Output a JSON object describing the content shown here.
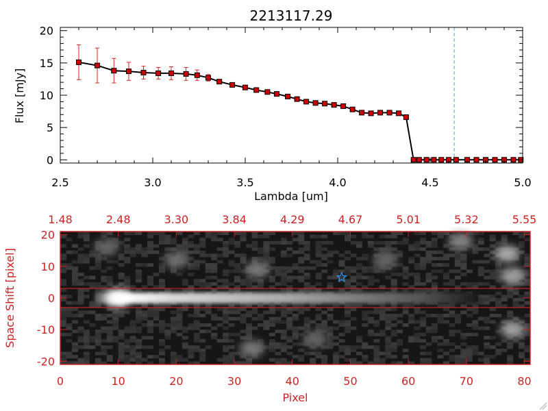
{
  "chart_data": [
    {
      "type": "line",
      "title": "2213117.29",
      "xlabel": "Lambda [um]",
      "ylabel": "Flux [mJy]",
      "xlim": [
        2.5,
        5.0
      ],
      "ylim": [
        -0.5,
        20.5
      ],
      "xticks": [
        2.5,
        3.0,
        3.5,
        4.0,
        4.5,
        5.0
      ],
      "xtick_labels": [
        "2.5",
        "3.0",
        "3.5",
        "4.0",
        "4.5",
        "5.0"
      ],
      "yticks": [
        0,
        5,
        10,
        15,
        20
      ],
      "ytick_labels": [
        "0",
        "5",
        "10",
        "15",
        "20"
      ],
      "line_color": "#000000",
      "marker_color": "#cc0000",
      "errorbar_color": "#dd2222",
      "vline": {
        "x": 4.63,
        "color": "#4aa8e0",
        "style": "dashed"
      },
      "series": [
        {
          "x": [
            2.6,
            2.7,
            2.79,
            2.87,
            2.95,
            3.03,
            3.1,
            3.18,
            3.24,
            3.3,
            3.36,
            3.43,
            3.5,
            3.56,
            3.62,
            3.67,
            3.73,
            3.78,
            3.83,
            3.88,
            3.93,
            3.98,
            4.03,
            4.08,
            4.13,
            4.18,
            4.23,
            4.28,
            4.33,
            4.37,
            4.41,
            4.44,
            4.48,
            4.52,
            4.56,
            4.6,
            4.64,
            4.7,
            4.75,
            4.8,
            4.85,
            4.9,
            4.95,
            4.99
          ],
          "y": [
            15.1,
            14.6,
            13.8,
            13.7,
            13.5,
            13.4,
            13.4,
            13.3,
            13.1,
            12.7,
            12.1,
            11.6,
            11.2,
            10.8,
            10.5,
            10.2,
            9.8,
            9.4,
            9.0,
            8.8,
            8.7,
            8.5,
            8.3,
            7.8,
            7.3,
            7.2,
            7.3,
            7.3,
            7.2,
            6.6,
            0.0,
            0.0,
            0.0,
            0.0,
            0.0,
            0.0,
            0.0,
            0.0,
            0.0,
            0.0,
            0.0,
            0.0,
            0.0,
            0.0
          ],
          "yerr": [
            2.7,
            2.7,
            1.9,
            1.4,
            1.0,
            0.9,
            1.0,
            1.0,
            0.8,
            0.5,
            0.3,
            0.2,
            0.2,
            0.2,
            0.2,
            0.2,
            0.2,
            0.2,
            0.2,
            0.2,
            0.2,
            0.2,
            0.2,
            0.2,
            0.2,
            0.2,
            0.2,
            0.2,
            0.2,
            0.2,
            0.1,
            0.1,
            0.1,
            0.1,
            0.1,
            0.1,
            0.1,
            0.1,
            0.1,
            0.1,
            0.1,
            0.1,
            0.1,
            0.1
          ]
        }
      ]
    },
    {
      "type": "heatmap",
      "xlabel": "Pixel",
      "ylabel": "Space Shift [pixel]",
      "xlim": [
        0,
        81
      ],
      "ylim": [
        -21,
        21
      ],
      "xticks": [
        0,
        10,
        20,
        30,
        40,
        50,
        60,
        70,
        80
      ],
      "xtick_labels": [
        "0",
        "10",
        "20",
        "30",
        "40",
        "50",
        "60",
        "70",
        "80"
      ],
      "yticks": [
        -20,
        -10,
        0,
        10,
        20
      ],
      "ytick_labels": [
        "-20",
        "-10",
        "0",
        "10",
        "20"
      ],
      "top_axis_labels": [
        "1.48",
        "2.48",
        "3.30",
        "3.84",
        "4.29",
        "4.67",
        "5.01",
        "5.32",
        "5.55"
      ],
      "axis_color": "#cc2222",
      "colormap": "grayscale",
      "extraction_window": [
        -3,
        3
      ],
      "trace": {
        "peak_x": 10,
        "y": 0,
        "end_x": 72
      },
      "blobs": [
        {
          "x": 77,
          "y": 14,
          "level": 0.55
        },
        {
          "x": 78,
          "y": 7,
          "level": 0.5
        },
        {
          "x": 78,
          "y": -10,
          "level": 0.5
        },
        {
          "x": 69,
          "y": 18,
          "level": 0.35
        },
        {
          "x": 34,
          "y": 9,
          "level": 0.3
        },
        {
          "x": 33,
          "y": -16,
          "level": 0.3
        },
        {
          "x": 20,
          "y": 12,
          "level": 0.25
        },
        {
          "x": 56,
          "y": 12,
          "level": 0.2
        },
        {
          "x": 8,
          "y": 16,
          "level": 0.2
        },
        {
          "x": 44,
          "y": -13,
          "level": 0.2
        }
      ],
      "star_marker": {
        "x": 48.5,
        "y": 6.5,
        "color": "#3399ff"
      }
    }
  ]
}
